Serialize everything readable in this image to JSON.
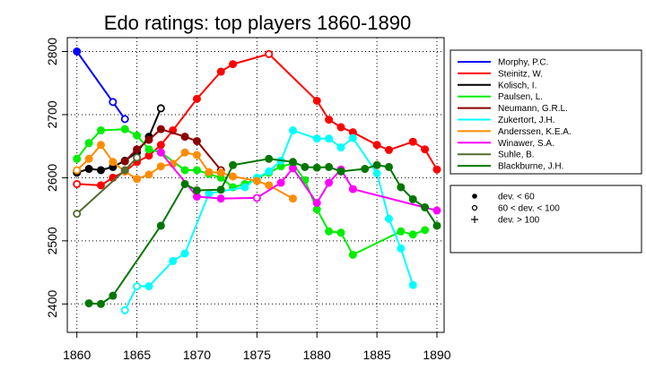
{
  "chart_data": {
    "type": "line",
    "title": "Edo ratings: top players 1860-1890",
    "xlabel": "",
    "ylabel": "",
    "xlim": [
      1859.2,
      1890.6
    ],
    "ylim": [
      2355,
      2822
    ],
    "x_ticks": [
      1860,
      1865,
      1870,
      1875,
      1880,
      1885,
      1890
    ],
    "y_ticks": [
      2400,
      2500,
      2600,
      2700,
      2800
    ],
    "grid": "dotted",
    "legend_position": "right",
    "series": [
      {
        "name": "Morphy, P.C.",
        "color": "#0000ff",
        "points": [
          [
            1860,
            2800,
            "f"
          ],
          [
            1863,
            2720,
            "o"
          ],
          [
            1864,
            2693,
            "o"
          ]
        ]
      },
      {
        "name": "Steinitz, W.",
        "color": "#ff0000",
        "points": [
          [
            1860,
            2590,
            "o"
          ],
          [
            1862,
            2588,
            "f"
          ],
          [
            1863,
            2600,
            "f"
          ],
          [
            1864,
            2610,
            "f"
          ],
          [
            1865,
            2625,
            "f"
          ],
          [
            1866,
            2635,
            "f"
          ],
          [
            1867,
            2652,
            "f"
          ],
          [
            1868,
            2675,
            "f"
          ],
          [
            1870,
            2725,
            "f"
          ],
          [
            1872,
            2768,
            "f"
          ],
          [
            1873,
            2780,
            "f"
          ],
          [
            1876,
            2796,
            "o"
          ],
          [
            1880,
            2722,
            "f"
          ],
          [
            1881,
            2692,
            "f"
          ],
          [
            1882,
            2680,
            "f"
          ],
          [
            1883,
            2672,
            "f"
          ],
          [
            1885,
            2652,
            "f"
          ],
          [
            1886,
            2644,
            "f"
          ],
          [
            1888,
            2657,
            "f"
          ],
          [
            1889,
            2645,
            "f"
          ],
          [
            1890,
            2613,
            "f"
          ]
        ]
      },
      {
        "name": "Kolisch, I.",
        "color": "#000000",
        "points": [
          [
            1860,
            2608,
            "f"
          ],
          [
            1861,
            2614,
            "f"
          ],
          [
            1862,
            2612,
            "f"
          ],
          [
            1863,
            2617,
            "f"
          ],
          [
            1864,
            2627,
            "f"
          ],
          [
            1865,
            2640,
            "f"
          ],
          [
            1866,
            2665,
            "f"
          ],
          [
            1867,
            2710,
            "o"
          ]
        ]
      },
      {
        "name": "Paulsen, L.",
        "color": "#00ee00",
        "points": [
          [
            1860,
            2630,
            "f"
          ],
          [
            1861,
            2655,
            "f"
          ],
          [
            1862,
            2675,
            "f"
          ],
          [
            1864,
            2677,
            "f"
          ],
          [
            1865,
            2667,
            "f"
          ],
          [
            1866,
            2645,
            "f"
          ],
          [
            1867,
            2640,
            "f"
          ],
          [
            1869,
            2612,
            "f"
          ],
          [
            1870,
            2612,
            "f"
          ],
          [
            1871,
            2606,
            "f"
          ],
          [
            1872,
            2600,
            "f"
          ],
          [
            1873,
            2585,
            "f"
          ],
          [
            1874,
            2590,
            "f"
          ],
          [
            1876,
            2608,
            "f"
          ],
          [
            1877,
            2618,
            "f"
          ],
          [
            1878,
            2622,
            "f"
          ],
          [
            1879,
            2596,
            "f"
          ],
          [
            1880,
            2550,
            "f"
          ],
          [
            1881,
            2515,
            "f"
          ],
          [
            1882,
            2513,
            "f"
          ],
          [
            1883,
            2478,
            "f"
          ],
          [
            1887,
            2515,
            "f"
          ],
          [
            1888,
            2510,
            "f"
          ],
          [
            1889,
            2517,
            "f"
          ]
        ]
      },
      {
        "name": "Neumann, G.R.L.",
        "color": "#8b0000",
        "points": [
          [
            1864,
            2626,
            "f"
          ],
          [
            1865,
            2645,
            "f"
          ],
          [
            1866,
            2660,
            "f"
          ],
          [
            1867,
            2677,
            "f"
          ],
          [
            1869,
            2665,
            "f"
          ],
          [
            1870,
            2658,
            "f"
          ],
          [
            1872,
            2612,
            "o"
          ]
        ]
      },
      {
        "name": "Zukertort, J.H.",
        "color": "#00ffff",
        "points": [
          [
            1864,
            2390,
            "o"
          ],
          [
            1865,
            2428,
            "o"
          ],
          [
            1866,
            2428,
            "f"
          ],
          [
            1868,
            2468,
            "f"
          ],
          [
            1869,
            2480,
            "f"
          ],
          [
            1871,
            2575,
            "f"
          ],
          [
            1874,
            2585,
            "f"
          ],
          [
            1875,
            2600,
            "f"
          ],
          [
            1876,
            2610,
            "f"
          ],
          [
            1877,
            2627,
            "f"
          ],
          [
            1878,
            2675,
            "f"
          ],
          [
            1880,
            2662,
            "f"
          ],
          [
            1881,
            2662,
            "f"
          ],
          [
            1882,
            2648,
            "f"
          ],
          [
            1883,
            2663,
            "f"
          ],
          [
            1885,
            2607,
            "f"
          ],
          [
            1886,
            2535,
            "f"
          ],
          [
            1887,
            2488,
            "f"
          ],
          [
            1888,
            2430,
            "f"
          ]
        ]
      },
      {
        "name": "Anderssen, K.E.A.",
        "color": "#ff8c00",
        "points": [
          [
            1860,
            2612,
            "o"
          ],
          [
            1861,
            2630,
            "f"
          ],
          [
            1862,
            2652,
            "f"
          ],
          [
            1863,
            2625,
            "f"
          ],
          [
            1864,
            2610,
            "f"
          ],
          [
            1865,
            2598,
            "f"
          ],
          [
            1866,
            2605,
            "f"
          ],
          [
            1867,
            2618,
            "f"
          ],
          [
            1868,
            2622,
            "f"
          ],
          [
            1869,
            2640,
            "f"
          ],
          [
            1870,
            2636,
            "f"
          ],
          [
            1871,
            2609,
            "f"
          ],
          [
            1872,
            2608,
            "f"
          ],
          [
            1873,
            2602,
            "f"
          ],
          [
            1875,
            2595,
            "f"
          ],
          [
            1876,
            2588,
            "f"
          ],
          [
            1878,
            2567,
            "f"
          ]
        ]
      },
      {
        "name": "Winawer, S.A.",
        "color": "#ff00ff",
        "points": [
          [
            1867,
            2640,
            "f"
          ],
          [
            1870,
            2570,
            "f"
          ],
          [
            1872,
            2567,
            "f"
          ],
          [
            1875,
            2568,
            "o"
          ],
          [
            1877,
            2592,
            "f"
          ],
          [
            1878,
            2615,
            "f"
          ],
          [
            1880,
            2560,
            "f"
          ],
          [
            1881,
            2592,
            "f"
          ],
          [
            1882,
            2613,
            "f"
          ],
          [
            1883,
            2582,
            "f"
          ],
          [
            1890,
            2548,
            "f"
          ]
        ]
      },
      {
        "name": "Suhle, B.",
        "color": "#556b2f",
        "points": [
          [
            1860,
            2543,
            "o"
          ],
          [
            1864,
            2612,
            "f"
          ],
          [
            1865,
            2632,
            "o"
          ]
        ]
      },
      {
        "name": "Blackburne, J.H.",
        "color": "#007700",
        "points": [
          [
            1861,
            2401,
            "f"
          ],
          [
            1862,
            2400,
            "f"
          ],
          [
            1863,
            2413,
            "f"
          ],
          [
            1867,
            2524,
            "f"
          ],
          [
            1869,
            2590,
            "f"
          ],
          [
            1870,
            2580,
            "f"
          ],
          [
            1872,
            2581,
            "f"
          ],
          [
            1873,
            2620,
            "f"
          ],
          [
            1876,
            2630,
            "f"
          ],
          [
            1878,
            2625,
            "f"
          ],
          [
            1879,
            2617,
            "f"
          ],
          [
            1880,
            2616,
            "f"
          ],
          [
            1881,
            2617,
            "f"
          ],
          [
            1882,
            2610,
            "f"
          ],
          [
            1884,
            2614,
            "f"
          ],
          [
            1885,
            2620,
            "f"
          ],
          [
            1886,
            2617,
            "f"
          ],
          [
            1887,
            2585,
            "f"
          ],
          [
            1888,
            2566,
            "f"
          ],
          [
            1889,
            2553,
            "f"
          ],
          [
            1890,
            2524,
            "f"
          ]
        ]
      }
    ],
    "marker_legend": [
      {
        "marker": "filled",
        "label": "dev. < 60"
      },
      {
        "marker": "open",
        "label": "60 < dev. < 100"
      },
      {
        "marker": "plus",
        "label": "dev. > 100"
      }
    ]
  }
}
